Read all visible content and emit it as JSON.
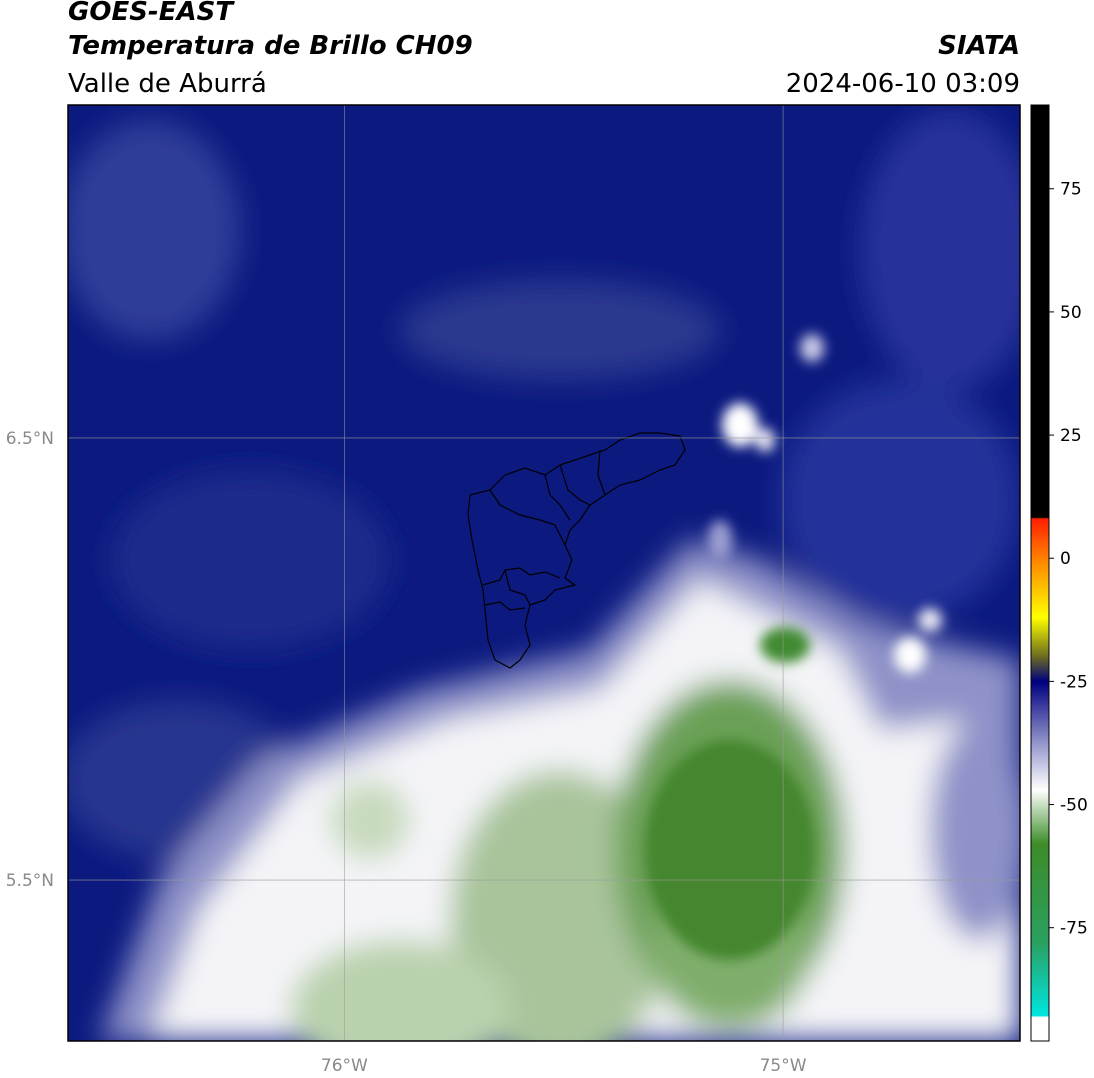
{
  "header": {
    "title": "GOES-EAST",
    "subtitle": "Temperatura de Brillo CH09",
    "region": "Valle de Aburrá",
    "agency": "SIATA",
    "datetime": "2024-06-10 03:09"
  },
  "map": {
    "lonlim": [
      -76.63,
      -74.46
    ],
    "latlim": [
      5.136,
      7.253
    ],
    "lonticks": [
      {
        "value": -76,
        "label": "76°W"
      },
      {
        "value": -75,
        "label": "75°W"
      }
    ],
    "latticks": [
      {
        "value": 6.5,
        "label": "6.5°N"
      },
      {
        "value": 5.5,
        "label": "5.5°N"
      }
    ],
    "grid": true
  },
  "colorbar": {
    "lim": [
      -98,
      92
    ],
    "ticks": [
      75,
      50,
      25,
      0,
      -25,
      -50,
      -75
    ],
    "stops": [
      {
        "value": 92,
        "color": "#000000"
      },
      {
        "value": 8.3,
        "color": "#000000"
      },
      {
        "value": 8,
        "color": "#ff2000"
      },
      {
        "value": 0,
        "color": "#ff8000"
      },
      {
        "value": -12,
        "color": "#ffff00"
      },
      {
        "value": -20,
        "color": "#6b6b20"
      },
      {
        "value": -25,
        "color": "#000080"
      },
      {
        "value": -37,
        "color": "#8d8fc8"
      },
      {
        "value": -47,
        "color": "#ffffff"
      },
      {
        "value": -58,
        "color": "#3c8c28"
      },
      {
        "value": -78,
        "color": "#2aa060"
      },
      {
        "value": -93,
        "color": "#00e5e0"
      },
      {
        "value": -93,
        "color": "#ffffff"
      },
      {
        "value": -98,
        "color": "#ffffff"
      }
    ]
  }
}
